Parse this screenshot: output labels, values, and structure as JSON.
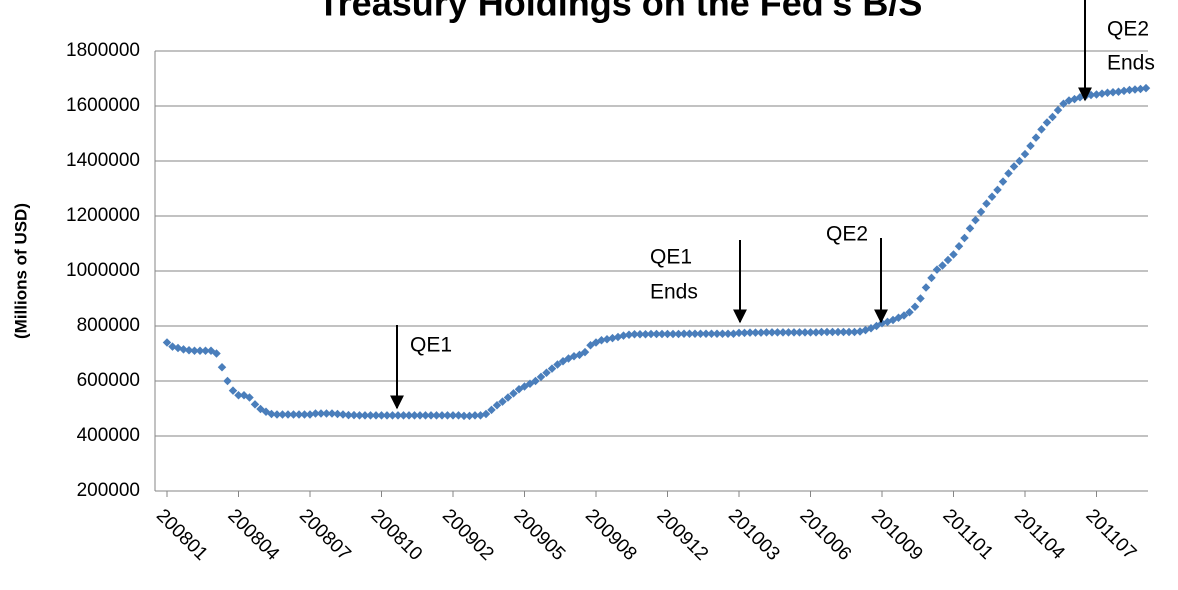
{
  "chart_data": {
    "type": "scatter",
    "title": "Treasury Holdings on the Fed's B/S",
    "y_label": "(Millions of USD)",
    "categories": [
      "200801",
      null,
      null,
      null,
      null,
      null,
      null,
      null,
      null,
      null,
      null,
      null,
      null,
      "200804",
      null,
      null,
      null,
      null,
      null,
      null,
      null,
      null,
      null,
      null,
      null,
      null,
      "200807",
      null,
      null,
      null,
      null,
      null,
      null,
      null,
      null,
      null,
      null,
      null,
      null,
      "200810",
      null,
      null,
      null,
      null,
      null,
      null,
      null,
      null,
      null,
      null,
      null,
      null,
      "200902",
      null,
      null,
      null,
      null,
      null,
      null,
      null,
      null,
      null,
      null,
      null,
      null,
      "200905",
      null,
      null,
      null,
      null,
      null,
      null,
      null,
      null,
      null,
      null,
      null,
      null,
      "200908",
      null,
      null,
      null,
      null,
      null,
      null,
      null,
      null,
      null,
      null,
      null,
      null,
      "200912",
      null,
      null,
      null,
      null,
      null,
      null,
      null,
      null,
      null,
      null,
      null,
      null,
      "201003",
      null,
      null,
      null,
      null,
      null,
      null,
      null,
      null,
      null,
      null,
      null,
      null,
      "201006",
      null,
      null,
      null,
      null,
      null,
      null,
      null,
      null,
      null,
      null,
      null,
      null,
      "201009",
      null,
      null,
      null,
      null,
      null,
      null,
      null,
      null,
      null,
      null,
      null,
      null,
      "201101",
      null,
      null,
      null,
      null,
      null,
      null,
      null,
      null,
      null,
      null,
      null,
      null,
      "201104",
      null,
      null,
      null,
      null,
      null,
      null,
      null,
      null,
      null,
      null,
      null,
      null,
      "201107",
      null,
      null,
      null,
      null,
      null,
      null,
      null,
      null,
      null
    ],
    "series": [
      {
        "name": "Treasury Holdings",
        "color": "#4a7ebb",
        "values": [
          740000,
          725000,
          720000,
          715000,
          712000,
          710000,
          710000,
          710000,
          710000,
          700000,
          650000,
          600000,
          565000,
          548000,
          548000,
          540000,
          515000,
          498000,
          488000,
          480000,
          478000,
          478000,
          478000,
          478000,
          478000,
          478000,
          478000,
          482000,
          482000,
          482000,
          482000,
          480000,
          478000,
          476000,
          476000,
          475000,
          475000,
          475000,
          475000,
          475000,
          475000,
          475000,
          475000,
          475000,
          475000,
          475000,
          475000,
          475000,
          475000,
          475000,
          475000,
          475000,
          475000,
          475000,
          473000,
          473000,
          475000,
          475000,
          480000,
          495000,
          512000,
          525000,
          540000,
          555000,
          570000,
          580000,
          590000,
          600000,
          615000,
          630000,
          645000,
          660000,
          672000,
          682000,
          690000,
          695000,
          705000,
          730000,
          740000,
          748000,
          752000,
          756000,
          760000,
          765000,
          768000,
          770000,
          770000,
          770000,
          771000,
          771000,
          771000,
          771000,
          771000,
          771000,
          772000,
          772000,
          772000,
          772000,
          772000,
          772000,
          772000,
          772000,
          772000,
          772000,
          775000,
          775000,
          776000,
          776000,
          776000,
          777000,
          777000,
          777000,
          777000,
          777000,
          777000,
          777000,
          777000,
          777000,
          777000,
          778000,
          778000,
          778000,
          778000,
          778000,
          778000,
          778000,
          780000,
          785000,
          792000,
          800000,
          810000,
          815000,
          822000,
          830000,
          838000,
          850000,
          870000,
          900000,
          940000,
          975000,
          1005000,
          1020000,
          1040000,
          1060000,
          1090000,
          1120000,
          1155000,
          1185000,
          1215000,
          1245000,
          1270000,
          1295000,
          1325000,
          1355000,
          1380000,
          1400000,
          1425000,
          1455000,
          1485000,
          1515000,
          1540000,
          1560000,
          1585000,
          1608000,
          1620000,
          1625000,
          1632000,
          1636000,
          1640000,
          1642000,
          1645000,
          1648000,
          1650000,
          1652000,
          1655000,
          1658000,
          1660000,
          1662000,
          1665000
        ]
      }
    ],
    "ylim": [
      200000,
      1800000
    ],
    "yticks": [
      200000,
      400000,
      600000,
      800000,
      1000000,
      1200000,
      1400000,
      1600000,
      1800000
    ],
    "grid": true,
    "annotations": [
      {
        "text": [
          "QE1"
        ]
      },
      {
        "text": [
          "QE1",
          "Ends"
        ]
      },
      {
        "text": [
          "QE2"
        ]
      },
      {
        "text": [
          "QE2",
          "Ends"
        ]
      }
    ]
  }
}
